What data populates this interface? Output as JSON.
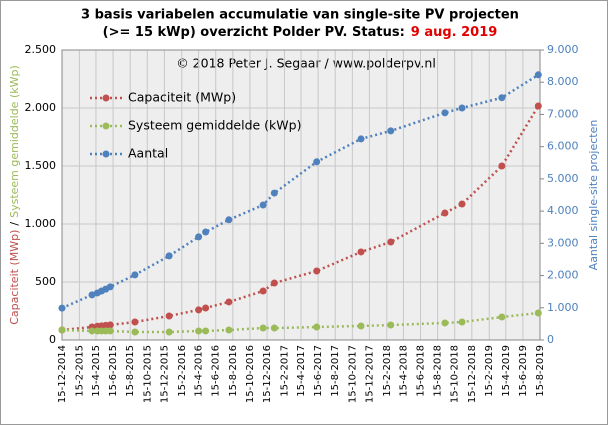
{
  "chart_data": {
    "type": "line",
    "title": "3 basis variabelen accumulatie van single-site PV projecten",
    "subtitle": "(>= 15 kWp) overzicht Polder PV. Status:",
    "status": "9 aug. 2019",
    "annotation": "© 2018 Peter J. Segaar / www.polderpv.nl",
    "ylabel_parts": [
      "Capaciteit (MWp)",
      "/",
      "Systeem gemiddelde (kWp)"
    ],
    "y2label": "Aantal single-site projecten",
    "legend": "upper left",
    "grid": true,
    "x": [
      "2014-12-15",
      "2015-04-01",
      "2015-04-20",
      "2015-05-05",
      "2015-05-20",
      "2015-06-05",
      "2015-09-01",
      "2016-01-01",
      "2016-04-15",
      "2016-05-10",
      "2016-08-01",
      "2016-12-01",
      "2017-01-10",
      "2017-06-10",
      "2017-11-15",
      "2018-03-01",
      "2018-09-10",
      "2018-11-10",
      "2019-04-01",
      "2019-08-09"
    ],
    "series": [
      {
        "name": "Capaciteit (MWp)",
        "color": "#c0504d",
        "values": [
          86,
          112,
          118,
          122,
          126,
          130,
          155,
          207,
          260,
          276,
          328,
          422,
          491,
          595,
          759,
          845,
          1095,
          1172,
          1500,
          2017
        ]
      },
      {
        "name": "Systeem gemiddelde (kWp)",
        "color": "#9bbb59",
        "values": [
          86,
          78,
          78,
          78,
          78,
          78,
          69,
          69,
          78,
          78,
          86,
          103,
          103,
          112,
          121,
          129,
          147,
          155,
          198,
          233
        ]
      },
      {
        "name": "Aantal",
        "color": "#4f81bd",
        "axis": "y2",
        "values": [
          990,
          1400,
          1460,
          1520,
          1580,
          1650,
          2020,
          2610,
          3200,
          3350,
          3730,
          4190,
          4560,
          5530,
          6240,
          6490,
          7050,
          7200,
          7520,
          8230
        ]
      }
    ],
    "xlim": [
      "2014-12-15",
      "2019-08-15"
    ],
    "xticks": [
      {
        "value": "2014-12-15",
        "label": "15-12-2014"
      },
      {
        "value": "2015-02-15",
        "label": "15-2-2015"
      },
      {
        "value": "2015-04-15",
        "label": "15-4-2015"
      },
      {
        "value": "2015-06-15",
        "label": "15-6-2015"
      },
      {
        "value": "2015-08-15",
        "label": "15-8-2015"
      },
      {
        "value": "2015-10-15",
        "label": "15-10-2015"
      },
      {
        "value": "2015-12-15",
        "label": "15-12-2015"
      },
      {
        "value": "2016-02-15",
        "label": "15-2-2016"
      },
      {
        "value": "2016-04-15",
        "label": "15-4-2016"
      },
      {
        "value": "2016-06-15",
        "label": "15-6-2016"
      },
      {
        "value": "2016-08-15",
        "label": "15-8-2016"
      },
      {
        "value": "2016-10-15",
        "label": "15-10-2016"
      },
      {
        "value": "2016-12-15",
        "label": "15-12-2016"
      },
      {
        "value": "2017-02-15",
        "label": "15-2-2017"
      },
      {
        "value": "2017-04-15",
        "label": "15-4-2017"
      },
      {
        "value": "2017-06-15",
        "label": "15-6-2017"
      },
      {
        "value": "2017-08-15",
        "label": "15-8-2017"
      },
      {
        "value": "2017-10-15",
        "label": "15-10-2017"
      },
      {
        "value": "2017-12-15",
        "label": "15-12-2017"
      },
      {
        "value": "2018-02-15",
        "label": "15-2-2018"
      },
      {
        "value": "2018-04-15",
        "label": "15-4-2018"
      },
      {
        "value": "2018-06-15",
        "label": "15-6-2018"
      },
      {
        "value": "2018-08-15",
        "label": "15-8-2018"
      },
      {
        "value": "2018-10-15",
        "label": "15-10-2018"
      },
      {
        "value": "2018-12-15",
        "label": "15-12-2018"
      },
      {
        "value": "2019-02-15",
        "label": "15-2-2019"
      },
      {
        "value": "2019-04-15",
        "label": "15-4-2019"
      },
      {
        "value": "2019-06-15",
        "label": "15-6-2019"
      },
      {
        "value": "2019-08-15",
        "label": "15-8-2019"
      }
    ],
    "ylim": [
      0,
      2500
    ],
    "yticks": [
      0,
      {
        "value": 500,
        "label": "500"
      },
      {
        "value": 1000,
        "label": "1.000"
      },
      {
        "value": 1500,
        "label": "1.500"
      },
      {
        "value": 2000,
        "label": "2.000"
      },
      {
        "value": 2500,
        "label": "2.500"
      }
    ],
    "y2lim": [
      0,
      9000
    ],
    "y2ticks": [
      0,
      {
        "value": 1000,
        "label": "1.000"
      },
      {
        "value": 2000,
        "label": "2.000"
      },
      {
        "value": 3000,
        "label": "3.000"
      },
      {
        "value": 4000,
        "label": "4.000"
      },
      {
        "value": 5000,
        "label": "5.000"
      },
      {
        "value": 6000,
        "label": "6.000"
      },
      {
        "value": 7000,
        "label": "7.000"
      },
      {
        "value": 8000,
        "label": "8.000"
      },
      {
        "value": 9000,
        "label": "9.000"
      }
    ]
  }
}
